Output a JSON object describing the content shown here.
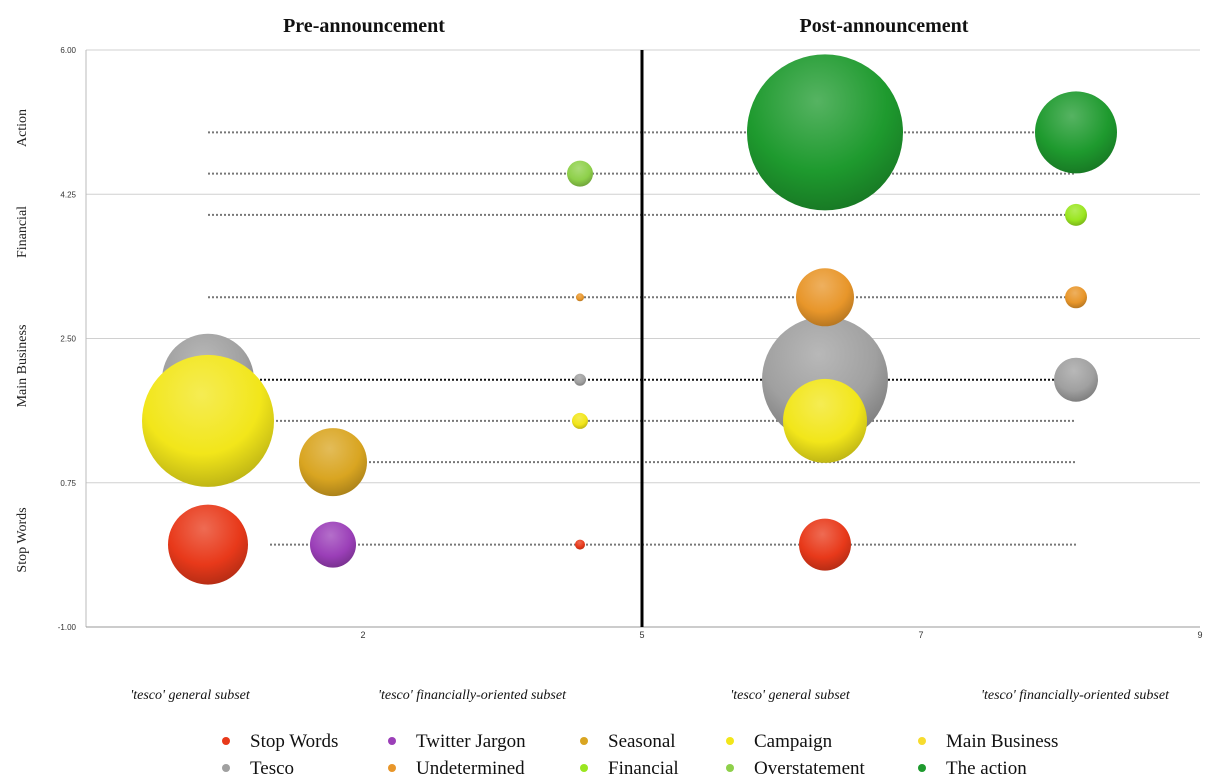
{
  "chart_data": {
    "type": "bubble",
    "panel_titles": [
      "Pre-announcement",
      "Post-announcement"
    ],
    "y_category_labels": [
      "Action",
      "Financial",
      "Main Business",
      "Stop Words"
    ],
    "y_ticks": [
      "6.00",
      "4.25",
      "2.50",
      "0.75",
      "-1.00"
    ],
    "x_ticks": [
      "2",
      "5",
      "7",
      "9"
    ],
    "ylim": [
      -1.0,
      6.0
    ],
    "subset_labels": [
      "'tesco' general subset",
      "'tesco' financially-oriented subset",
      "'tesco' general subset",
      "'tesco' financially-oriented subset"
    ],
    "legend": [
      {
        "name": "Stop Words",
        "color": "#e8391a"
      },
      {
        "name": "Twitter Jargon",
        "color": "#9b3fb8"
      },
      {
        "name": "Seasonal",
        "color": "#d9a521"
      },
      {
        "name": "Campaign",
        "color": "#f2e61a"
      },
      {
        "name": "Main Business",
        "color": "#f7dc2e"
      },
      {
        "name": "Tesco",
        "color": "#a0a0a0"
      },
      {
        "name": "Undetermined",
        "color": "#e8962a"
      },
      {
        "name": "Financial",
        "color": "#9ae620"
      },
      {
        "name": "Overstatement",
        "color": "#8ed04a"
      },
      {
        "name": "The action",
        "color": "#1e9a2e"
      }
    ],
    "series": [
      {
        "name": "Stop Words",
        "y": 0.0,
        "color": "#e8391a",
        "bubbles": [
          {
            "subset": "pre-general",
            "size": 40
          },
          {
            "subset": "pre-financial",
            "size": 5
          },
          {
            "subset": "post-general",
            "size": 26
          }
        ]
      },
      {
        "name": "Twitter Jargon",
        "y": 0.0,
        "color": "#9b3fb8",
        "bubbles": [
          {
            "subset": "pre-general-b",
            "size": 23
          }
        ]
      },
      {
        "name": "Seasonal",
        "y": 1.0,
        "color": "#d9a521",
        "bubbles": [
          {
            "subset": "pre-general-b",
            "size": 34
          }
        ]
      },
      {
        "name": "Campaign",
        "y": 1.5,
        "color": "#f2e61a",
        "bubbles": [
          {
            "subset": "pre-general",
            "size": 66
          },
          {
            "subset": "pre-financial",
            "size": 8
          },
          {
            "subset": "post-general",
            "size": 42
          }
        ]
      },
      {
        "name": "Tesco",
        "y": 2.0,
        "color": "#a0a0a0",
        "bubbles": [
          {
            "subset": "pre-general",
            "size": 46
          },
          {
            "subset": "pre-financial",
            "size": 6
          },
          {
            "subset": "post-general",
            "size": 63
          },
          {
            "subset": "post-financial",
            "size": 22
          }
        ]
      },
      {
        "name": "Undetermined",
        "y": 3.0,
        "color": "#e8962a",
        "bubbles": [
          {
            "subset": "pre-financial",
            "size": 4
          },
          {
            "subset": "post-general",
            "size": 29
          },
          {
            "subset": "post-financial",
            "size": 11
          }
        ]
      },
      {
        "name": "Financial",
        "y": 4.0,
        "color": "#9ae620",
        "bubbles": [
          {
            "subset": "post-financial",
            "size": 11
          }
        ]
      },
      {
        "name": "Overstatement",
        "y": 4.5,
        "color": "#8ed04a",
        "bubbles": [
          {
            "subset": "pre-financial",
            "size": 13
          }
        ]
      },
      {
        "name": "The action",
        "y": 5.0,
        "color": "#1e9a2e",
        "bubbles": [
          {
            "subset": "post-general",
            "size": 78
          },
          {
            "subset": "post-financial",
            "size": 41
          }
        ]
      }
    ]
  }
}
